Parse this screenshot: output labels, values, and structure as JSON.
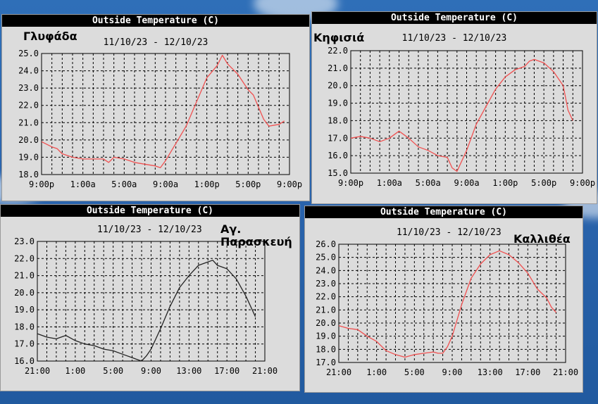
{
  "colors": {
    "line_red": "#f05050",
    "line_black": "#222222",
    "panel_bg": "#dcdcdc",
    "grid": "#000000"
  },
  "chart_data": [
    {
      "type": "line",
      "title": "Outside Temperature (C)",
      "subtitle": "11/10/23 - 12/10/23",
      "location": "Γλυφάδα",
      "x_ticks": [
        "9:00p",
        "1:00a",
        "5:00a",
        "9:00a",
        "1:00p",
        "5:00p",
        "9:00p"
      ],
      "y_ticks": [
        "18.0",
        "19.0",
        "20.0",
        "21.0",
        "22.0",
        "23.0",
        "24.0",
        "25.0"
      ],
      "ylim": [
        18,
        25
      ],
      "xlim": [
        0,
        24
      ],
      "grid": true,
      "series": [
        {
          "color": "#f05050",
          "x": [
            0,
            1,
            1.5,
            2,
            3,
            4,
            5,
            6,
            6.5,
            7,
            8,
            8.5,
            9,
            10,
            11,
            11.5,
            12,
            13,
            14,
            15,
            16,
            17,
            17.5,
            18,
            19,
            20,
            20.5,
            21,
            21.5,
            22,
            23,
            23.5
          ],
          "y": [
            19.9,
            19.6,
            19.5,
            19.2,
            19.0,
            18.9,
            18.9,
            18.9,
            18.7,
            19.0,
            18.9,
            18.8,
            18.7,
            18.6,
            18.5,
            18.4,
            18.8,
            19.8,
            20.8,
            22.2,
            23.6,
            24.3,
            24.9,
            24.4,
            23.8,
            22.9,
            22.6,
            21.9,
            21.2,
            20.8,
            20.9,
            21.1
          ]
        }
      ]
    },
    {
      "type": "line",
      "title": "Outside Temperature (C)",
      "subtitle": "11/10/23 - 12/10/23",
      "location": "Κηφισιά",
      "x_ticks": [
        "9:00p",
        "1:00a",
        "5:00a",
        "9:00a",
        "1:00p",
        "5:00p",
        "9:00p"
      ],
      "y_ticks": [
        "15.0",
        "16.0",
        "17.0",
        "18.0",
        "19.0",
        "20.0",
        "21.0",
        "22.0"
      ],
      "ylim": [
        15,
        22
      ],
      "xlim": [
        0,
        24
      ],
      "grid": true,
      "series": [
        {
          "color": "#f05050",
          "x": [
            0,
            1,
            2,
            3,
            4,
            5,
            6,
            7,
            8,
            9,
            10,
            10.5,
            11,
            12,
            13,
            14,
            15,
            16,
            17,
            18,
            18.5,
            19,
            20,
            21,
            22,
            22.5,
            23
          ],
          "y": [
            17.0,
            17.1,
            17.0,
            16.8,
            17.0,
            17.4,
            17.0,
            16.5,
            16.3,
            16.0,
            15.9,
            15.3,
            15.1,
            16.3,
            17.8,
            18.8,
            19.8,
            20.5,
            20.9,
            21.1,
            21.4,
            21.5,
            21.3,
            20.8,
            20.0,
            18.6,
            18.0
          ]
        }
      ]
    },
    {
      "type": "line",
      "title": "Outside Temperature (C)",
      "subtitle": "11/10/23 - 12/10/23",
      "location": "Αγ. Παρασκευή",
      "x_ticks": [
        "21:00",
        "1:00",
        "5:00",
        "9:00",
        "13:00",
        "17:00",
        "21:00"
      ],
      "y_ticks": [
        "16.0",
        "17.0",
        "18.0",
        "19.0",
        "20.0",
        "21.0",
        "22.0",
        "23.0"
      ],
      "ylim": [
        16,
        23
      ],
      "xlim": [
        0,
        24
      ],
      "grid": true,
      "series": [
        {
          "color": "#222222",
          "x": [
            0,
            1,
            2,
            3,
            4,
            5,
            6,
            7,
            8,
            9,
            10,
            10.5,
            11,
            11.5,
            12,
            13,
            14,
            15,
            16,
            17,
            18,
            18.5,
            19,
            20,
            21,
            22,
            23
          ],
          "y": [
            17.6,
            17.4,
            17.3,
            17.5,
            17.2,
            17.0,
            16.9,
            16.7,
            16.6,
            16.4,
            16.2,
            16.1,
            16.0,
            16.3,
            16.7,
            17.9,
            19.2,
            20.3,
            21.0,
            21.6,
            21.8,
            21.9,
            21.6,
            21.4,
            20.8,
            19.8,
            18.6
          ]
        }
      ]
    },
    {
      "type": "line",
      "title": "Outside Temperature (C)",
      "subtitle": "11/10/23 - 12/10/23",
      "location": "Καλλιθέα",
      "x_ticks": [
        "21:00",
        "1:00",
        "5:00",
        "9:00",
        "13:00",
        "17:00",
        "21:00"
      ],
      "y_ticks": [
        "17.0",
        "18.0",
        "19.0",
        "20.0",
        "21.0",
        "22.0",
        "23.0",
        "24.0",
        "25.0",
        "26.0"
      ],
      "ylim": [
        17,
        26
      ],
      "xlim": [
        0,
        24
      ],
      "grid": true,
      "series": [
        {
          "color": "#f05050",
          "x": [
            0,
            1,
            2,
            3,
            4,
            5,
            6,
            7,
            8,
            9,
            10,
            10.5,
            11,
            11.5,
            12,
            13,
            14,
            15,
            16,
            17,
            18,
            18.5,
            19,
            20,
            21,
            22,
            22.5,
            23
          ],
          "y": [
            19.8,
            19.6,
            19.5,
            19.0,
            18.6,
            17.9,
            17.6,
            17.4,
            17.6,
            17.7,
            17.8,
            17.7,
            17.7,
            18.2,
            19.0,
            21.4,
            23.4,
            24.5,
            25.2,
            25.5,
            25.2,
            24.9,
            24.6,
            23.8,
            22.6,
            21.9,
            21.2,
            20.8
          ]
        }
      ]
    }
  ]
}
